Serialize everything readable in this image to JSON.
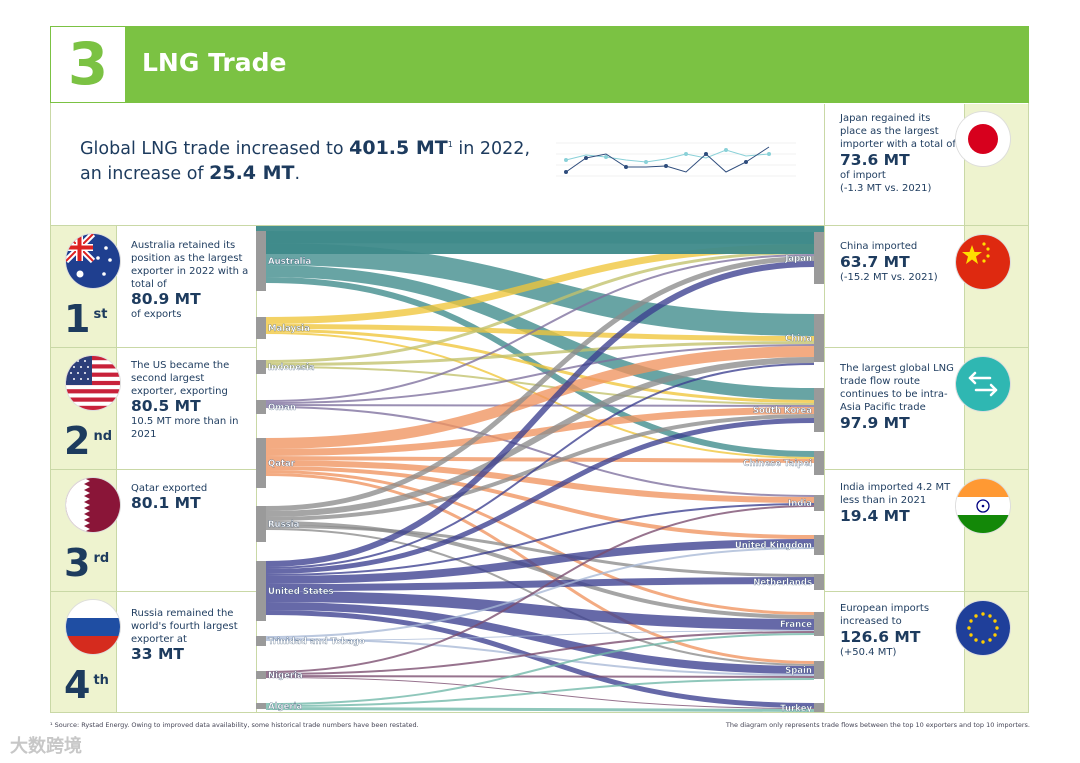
{
  "header": {
    "section_number": "3",
    "title": "LNG Trade"
  },
  "intro": {
    "text_1": "Global LNG trade increased to ",
    "value_1": "401.5 MT",
    "footnote": "1",
    "text_2": " in 2022,",
    "text_3": "an increase of ",
    "value_2": "25.4 MT",
    "text_4": "."
  },
  "exporters_panel": [
    {
      "rank": "1",
      "suffix": "st",
      "flag": "australia-flag",
      "text": "Australia retained its position as the largest exporter in 2022 with a total of",
      "value": "80.9 MT",
      "tail": "of exports"
    },
    {
      "rank": "2",
      "suffix": "nd",
      "flag": "usa-flag",
      "text": "The US became the second largest exporter, exporting",
      "value": "80.5 MT",
      "tail": "10.5 MT more than in 2021"
    },
    {
      "rank": "3",
      "suffix": "rd",
      "flag": "qatar-flag",
      "text": "Qatar exported",
      "value": "80.1 MT",
      "tail": ""
    },
    {
      "rank": "4",
      "suffix": "th",
      "flag": "russia-flag",
      "text": "Russia remained the world's fourth largest exporter at",
      "value": "33 MT",
      "tail": ""
    }
  ],
  "importers_panel": [
    {
      "flag": "japan-flag",
      "text": "Japan regained its place as  the largest importer with a total of",
      "value": "73.6 MT",
      "tail": "of import",
      "tail2": "(-1.3 MT vs. 2021)"
    },
    {
      "flag": "china-flag",
      "text": "China imported",
      "value": "63.7 MT",
      "tail": "(-15.2 MT vs. 2021)",
      "tail2": ""
    },
    {
      "flag": "trade-flow-icon",
      "text": "The largest global LNG trade flow route continues to be intra-Asia Pacific trade",
      "value": "97.9 MT",
      "tail": "",
      "tail2": ""
    },
    {
      "flag": "india-flag",
      "text": "India imported 4.2 MT less than in 2021",
      "value": "19.4 MT",
      "tail": "",
      "tail2": ""
    },
    {
      "flag": "eu-flag",
      "text": "European imports increased to",
      "value": "126.6 MT",
      "tail": "(+50.4 MT)",
      "tail2": ""
    }
  ],
  "sankey": {
    "exporters": [
      "Australia",
      "Malaysia",
      "Indonesia",
      "Oman",
      "Qatar",
      "Russia",
      "United States",
      "Trinidad and Tobago",
      "Nigeria",
      "Algeria"
    ],
    "importers": [
      "Japan",
      "China",
      "South Korea",
      "Chinese Taipei",
      "India",
      "United Kingdom",
      "Netherlands",
      "France",
      "Spain",
      "Turkey"
    ],
    "colors": {
      "Australia": "#3e8a8a",
      "Malaysia": "#efc53a",
      "Indonesia": "#c2c26b",
      "Oman": "#7d6f9d",
      "Qatar": "#f0935f",
      "Russia": "#8c8c8c",
      "United States": "#3b3f8f",
      "Trinidad and Tobago": "#a8b9d6",
      "Nigeria": "#7a4b6e",
      "Algeria": "#6fb7a8"
    }
  },
  "footer": {
    "source": "¹ Source: Rystad Energy. Owing to improved data availability, some historical trade numbers have been restated.",
    "note": "The diagram only represents trade flows between the top 10 exporters and top 10 importers."
  },
  "watermark": "大数跨境"
}
